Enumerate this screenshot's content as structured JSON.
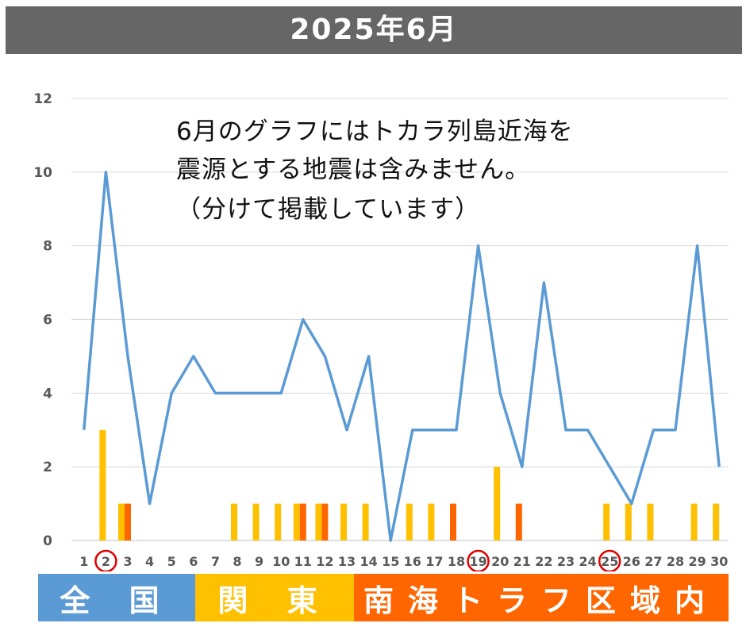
{
  "title": "2025年6月",
  "note_lines": [
    "6月のグラフにはトカラ列島近海を",
    "震源とする地震は含みません。",
    "（分けて掲載しています）"
  ],
  "legend": [
    {
      "label": "全 国",
      "color": "#5B9BD5"
    },
    {
      "label": "関 東",
      "color": "#FFC000"
    },
    {
      "label": "南海トラフ区域内",
      "color": "#FF6600"
    }
  ],
  "chart_data": {
    "type": "line",
    "categories": [
      "1",
      "2",
      "3",
      "4",
      "5",
      "6",
      "7",
      "8",
      "9",
      "10",
      "11",
      "12",
      "13",
      "14",
      "15",
      "16",
      "17",
      "18",
      "19",
      "20",
      "21",
      "22",
      "23",
      "24",
      "25",
      "26",
      "27",
      "28",
      "29",
      "30"
    ],
    "ylim": [
      0,
      12
    ],
    "yticks": [
      "0",
      "2",
      "4",
      "6",
      "8",
      "10",
      "12"
    ],
    "grid": true,
    "circled_days": [
      "2",
      "19",
      "25"
    ],
    "series": [
      {
        "type": "line",
        "color": "#5B9BD5",
        "values": [
          3,
          10,
          5,
          1,
          4,
          5,
          4,
          4,
          4,
          4,
          6,
          5,
          3,
          5,
          0,
          3,
          3,
          3,
          8,
          4,
          2,
          7,
          3,
          3,
          2,
          1,
          3,
          3,
          8,
          2
        ]
      },
      {
        "type": "bar",
        "color": "#FFC000",
        "values": [
          0,
          3,
          1,
          0,
          0,
          0,
          0,
          1,
          1,
          1,
          1,
          1,
          1,
          1,
          0,
          1,
          1,
          0,
          0,
          2,
          0,
          0,
          0,
          0,
          1,
          1,
          1,
          0,
          1,
          1
        ]
      },
      {
        "type": "bar",
        "color": "#FF6600",
        "values": [
          0,
          0,
          1,
          0,
          0,
          0,
          0,
          0,
          0,
          0,
          1,
          1,
          0,
          0,
          0,
          0,
          0,
          1,
          0,
          0,
          1,
          0,
          0,
          0,
          0,
          0,
          0,
          0,
          0,
          0
        ]
      }
    ]
  }
}
